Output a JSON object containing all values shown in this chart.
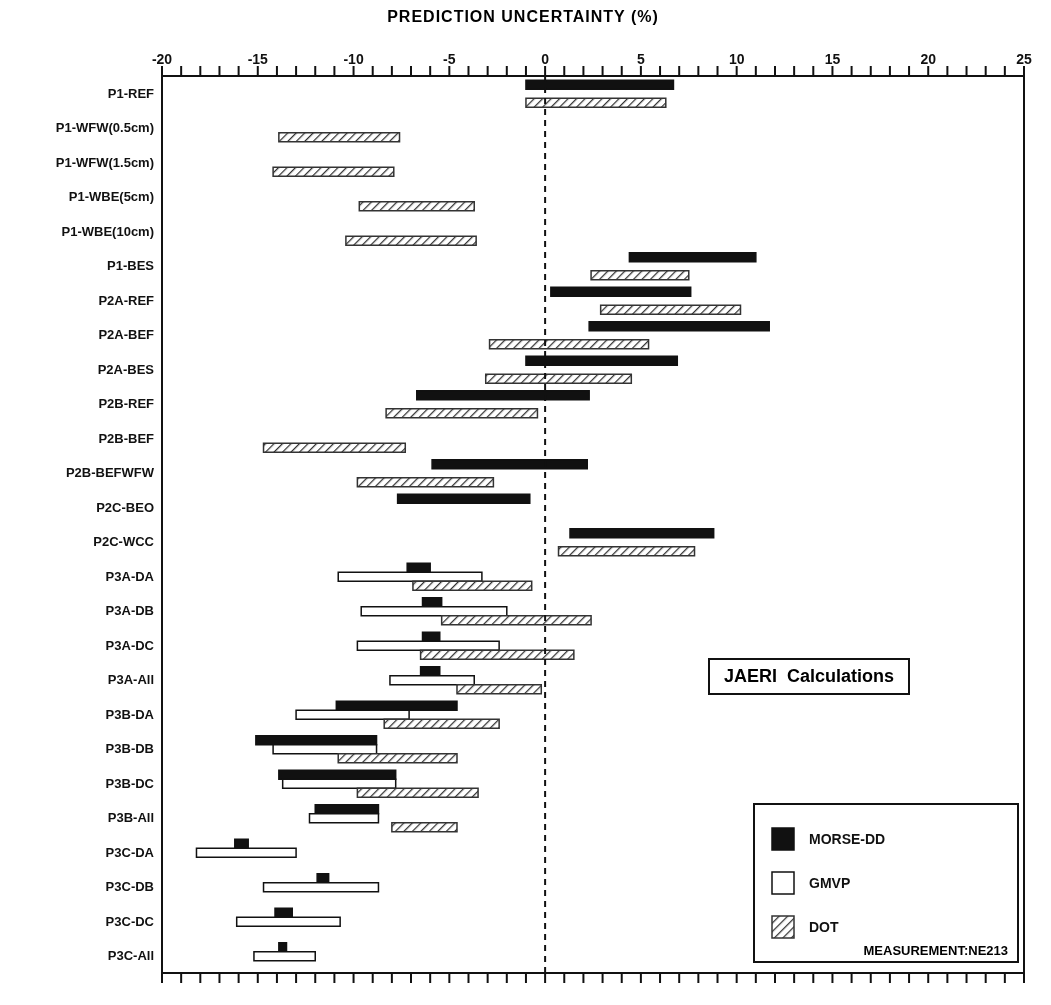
{
  "chart_data": {
    "type": "bar",
    "orientation": "horizontal",
    "xlabel": "PREDICTION UNCERTAINTY (%)",
    "categories": [
      "P1-REF",
      "P1-WFW(0.5cm)",
      "P1-WFW(1.5cm)",
      "P1-WBE(5cm)",
      "P1-WBE(10cm)",
      "P1-BES",
      "P2A-REF",
      "P2A-BEF",
      "P2A-BES",
      "P2B-REF",
      "P2B-BEF",
      "P2B-BEFWFW",
      "P2C-BEO",
      "P2C-WCC",
      "P3A-DA",
      "P3A-DB",
      "P3A-DC",
      "P3A-All",
      "P3B-DA",
      "P3B-DB",
      "P3B-DC",
      "P3B-All",
      "P3C-DA",
      "P3C-DB",
      "P3C-DC",
      "P3C-All"
    ],
    "series": [
      {
        "name": "MORSE-DD",
        "color": "#111111",
        "base": [
          -1.0,
          null,
          null,
          null,
          null,
          4.4,
          0.3,
          2.3,
          -1.0,
          -6.7,
          null,
          -5.9,
          -7.7,
          1.3,
          -7.2,
          -6.4,
          -6.4,
          -6.5,
          -10.9,
          -15.1,
          -13.9,
          -12.0,
          -16.2,
          -11.9,
          -14.1,
          -13.9
        ],
        "values": [
          7.7,
          null,
          null,
          null,
          null,
          6.6,
          7.3,
          9.4,
          7.9,
          9.0,
          null,
          8.1,
          6.9,
          7.5,
          1.2,
          1.0,
          0.9,
          1.0,
          6.3,
          6.3,
          6.1,
          3.3,
          0.7,
          0.6,
          0.9,
          0.4
        ]
      },
      {
        "name": "GMVP",
        "color": "#ffffff",
        "base": [
          null,
          null,
          null,
          null,
          null,
          null,
          null,
          null,
          null,
          null,
          null,
          null,
          null,
          null,
          -10.8,
          -9.6,
          -9.8,
          -8.1,
          -13.0,
          -14.2,
          -13.7,
          -12.3,
          -18.2,
          -14.7,
          -16.1,
          -15.2
        ],
        "values": [
          null,
          null,
          null,
          null,
          null,
          null,
          null,
          null,
          null,
          null,
          null,
          null,
          null,
          null,
          7.5,
          7.6,
          7.4,
          4.4,
          5.9,
          5.4,
          5.9,
          3.6,
          5.2,
          6.0,
          5.4,
          3.2
        ]
      },
      {
        "name": "DOT",
        "color": "#333333",
        "base": [
          -1.0,
          -13.9,
          -14.2,
          -9.7,
          -10.4,
          2.4,
          2.9,
          -2.9,
          -3.1,
          -8.3,
          -14.7,
          -9.8,
          null,
          0.7,
          -6.9,
          -5.4,
          -6.5,
          -4.6,
          -8.4,
          -10.8,
          -9.8,
          -8.0,
          null,
          null,
          null,
          null
        ],
        "values": [
          7.3,
          6.3,
          6.3,
          6.0,
          6.8,
          5.1,
          7.3,
          8.3,
          7.6,
          7.9,
          7.4,
          7.1,
          null,
          7.1,
          6.2,
          7.8,
          8.0,
          4.4,
          6.0,
          6.2,
          6.3,
          3.4,
          null,
          null,
          null,
          null
        ]
      }
    ],
    "xlim": [
      -20,
      25
    ],
    "xticks": [
      -20,
      {
        "value": -19,
        "label": null
      },
      {
        "value": -18,
        "label": null
      },
      {
        "value": -17,
        "label": null
      },
      {
        "value": -16,
        "label": null
      },
      -15,
      {
        "value": -14,
        "label": null
      },
      {
        "value": -13,
        "label": null
      },
      {
        "value": -12,
        "label": null
      },
      {
        "value": -11,
        "label": null
      },
      -10,
      {
        "value": -9,
        "label": null
      },
      {
        "value": -8,
        "label": null
      },
      {
        "value": -7,
        "label": null
      },
      {
        "value": -6,
        "label": null
      },
      -5,
      {
        "value": -4,
        "label": null
      },
      {
        "value": -3,
        "label": null
      },
      {
        "value": -2,
        "label": null
      },
      {
        "value": -1,
        "label": null
      },
      0,
      {
        "value": 1,
        "label": null
      },
      {
        "value": 2,
        "label": null
      },
      {
        "value": 3,
        "label": null
      },
      {
        "value": 4,
        "label": null
      },
      5,
      {
        "value": 6,
        "label": null
      },
      {
        "value": 7,
        "label": null
      },
      {
        "value": 8,
        "label": null
      },
      {
        "value": 9,
        "label": null
      },
      10,
      {
        "value": 11,
        "label": null
      },
      {
        "value": 12,
        "label": null
      },
      {
        "value": 13,
        "label": null
      },
      {
        "value": 14,
        "label": null
      },
      15,
      {
        "value": 16,
        "label": null
      },
      {
        "value": 17,
        "label": null
      },
      {
        "value": 18,
        "label": null
      },
      {
        "value": 19,
        "label": null
      },
      20,
      {
        "value": 21,
        "label": null
      },
      {
        "value": 22,
        "label": null
      },
      {
        "value": 23,
        "label": null
      },
      {
        "value": 24,
        "label": null
      },
      25
    ],
    "ref_lines": [
      {
        "axis": "x",
        "value": 0,
        "line_style": "dashed",
        "color": "#111111"
      }
    ],
    "legend": "bottom right",
    "grid": false,
    "annotations": [
      "JAERI  Calculations",
      "MEASUREMENT:NE213"
    ]
  }
}
